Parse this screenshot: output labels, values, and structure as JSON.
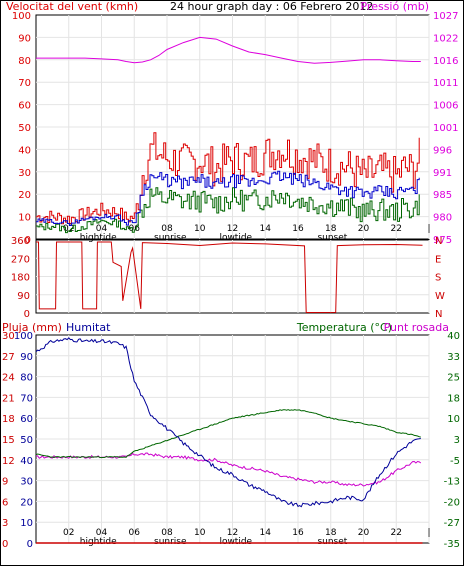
{
  "colors": {
    "wind": "#dd0000",
    "gust": "#dd0000",
    "avg_wind": "#0000cc",
    "wind_dir": "#cc0000",
    "pressure": "#dd00dd",
    "rain": "#cc0000",
    "humidity": "#000099",
    "temperature": "#006600",
    "dewpoint": "#cc00cc",
    "grid": "#e4e4e4",
    "frame": "#000000"
  },
  "chart_data": [
    {
      "type": "line",
      "id": "wind-pressure",
      "title": "24 hour graph day : 06 Febrero 2012",
      "left_label": "Velocitat del vent (kmh)",
      "right_label": "Pressió (mb)",
      "x_ticks": [
        "02",
        "04",
        "06",
        "08",
        "10",
        "12",
        "14",
        "16",
        "18",
        "20",
        "22",
        "|"
      ],
      "x_events": [
        "hightide",
        "sunrise",
        "lowtide",
        "sunset"
      ],
      "left_ticks": [
        0,
        10,
        20,
        30,
        40,
        50,
        60,
        70,
        80,
        90,
        100
      ],
      "right_ticks": [
        975,
        980,
        985,
        991,
        996,
        1001,
        1006,
        1011,
        1016,
        1022,
        1027
      ],
      "ylim_left": [
        0,
        100
      ],
      "ylim_right": [
        975,
        1027
      ],
      "x": [
        0,
        1,
        2,
        3,
        4,
        5,
        5.5,
        6,
        6.5,
        7,
        7.5,
        8,
        9,
        10,
        11,
        12,
        13,
        14,
        15,
        16,
        17,
        18,
        19,
        20,
        21,
        22,
        22.5,
        23,
        23.5
      ],
      "series": [
        {
          "name": "gust",
          "color_key": "wind",
          "values": [
            10,
            10,
            9,
            11,
            13,
            12,
            9,
            10,
            30,
            40,
            38,
            36,
            34,
            35,
            32,
            36,
            34,
            38,
            40,
            37,
            35,
            33,
            32,
            28,
            30,
            28,
            32,
            30,
            38
          ]
        },
        {
          "name": "speed",
          "color_key": "avg_wind",
          "values": [
            8,
            8,
            7,
            9,
            10,
            10,
            7,
            8,
            22,
            28,
            27,
            26,
            25,
            26,
            24,
            26,
            25,
            27,
            28,
            26,
            25,
            23,
            22,
            20,
            21,
            20,
            22,
            21,
            26
          ]
        },
        {
          "name": "min",
          "color_key": "temperature",
          "values": [
            5,
            6,
            4,
            6,
            8,
            7,
            4,
            5,
            14,
            20,
            18,
            18,
            17,
            17,
            16,
            18,
            17,
            18,
            20,
            17,
            16,
            15,
            14,
            12,
            13,
            12,
            14,
            13,
            17
          ]
        },
        {
          "name": "pressure",
          "color_key": "pressure",
          "axis": "right",
          "values": [
            1017,
            1017,
            1017,
            1017,
            1016.8,
            1016.6,
            1016.2,
            1015.9,
            1016.1,
            1016.6,
            1017.6,
            1019,
            1020.6,
            1021.8,
            1021.4,
            1019.8,
            1018.4,
            1017.8,
            1017,
            1016.2,
            1015.8,
            1016,
            1016.3,
            1016.6,
            1016.6,
            1016.4,
            1016.3,
            1016.2,
            1016.2
          ]
        }
      ]
    },
    {
      "type": "line",
      "id": "wind-direction",
      "left_ticks": [
        0,
        90,
        180,
        270,
        360
      ],
      "right_ticks": [
        "N",
        "W",
        "S",
        "E",
        "N"
      ],
      "ylim": [
        0,
        360
      ],
      "x": [
        0,
        0.15,
        0.2,
        1.2,
        1.25,
        2.8,
        2.85,
        3.7,
        3.75,
        4.6,
        4.7,
        5.2,
        5.3,
        5.8,
        5.9,
        6.4,
        6.5,
        8,
        10,
        12,
        14,
        16.4,
        16.5,
        18.3,
        18.4,
        20,
        22,
        23.6
      ],
      "series": [
        {
          "name": "direction",
          "color_key": "wind_dir",
          "values": [
            350,
            350,
            20,
            20,
            350,
            350,
            20,
            20,
            350,
            350,
            250,
            230,
            60,
            300,
            320,
            20,
            345,
            340,
            335,
            345,
            340,
            330,
            5,
            5,
            330,
            335,
            340,
            335
          ]
        }
      ]
    },
    {
      "type": "line",
      "id": "rain-humidity-temp",
      "labels": {
        "rain": "Pluja (mm)",
        "humidity": "Humitat",
        "temperature": "Temperatura (°C)",
        "dewpoint": "Punt rosada"
      },
      "x_ticks": [
        "02",
        "04",
        "06",
        "08",
        "10",
        "12",
        "14",
        "16",
        "18",
        "20",
        "22",
        "|"
      ],
      "x_events": [
        "hightide",
        "sunrise",
        "lowtide",
        "sunset"
      ],
      "rain_ticks": [
        "0",
        "3",
        "6",
        "9",
        "12",
        "15",
        "18",
        "21",
        "24",
        "27",
        "30"
      ],
      "humidity_ticks": [
        0,
        10,
        20,
        30,
        40,
        50,
        60,
        70,
        80,
        90,
        100
      ],
      "temp_ticks": [
        -35,
        -27,
        -20,
        -13,
        -5,
        3,
        10,
        18,
        25,
        33,
        40
      ],
      "ylim_humidity": [
        0,
        100
      ],
      "ylim_temp": [
        -35,
        40
      ],
      "x": [
        0,
        1,
        2,
        3,
        4,
        5,
        5.5,
        6,
        7,
        8,
        9,
        10,
        11,
        12,
        13,
        14,
        15,
        16,
        17,
        18,
        19,
        20,
        21,
        22,
        23,
        23.6
      ],
      "series": [
        {
          "name": "rain",
          "color_key": "rain",
          "values": [
            0,
            0,
            0,
            0,
            0,
            0,
            0,
            0,
            0,
            0,
            0,
            0,
            0,
            0,
            0,
            0,
            0,
            0,
            0,
            0,
            0,
            0,
            0,
            0,
            0,
            0
          ]
        },
        {
          "name": "humidity",
          "color_key": "humidity",
          "values": [
            92,
            97,
            98,
            97,
            97,
            96,
            94,
            78,
            62,
            55,
            48,
            42,
            36,
            33,
            28,
            25,
            20,
            18,
            19,
            20,
            22,
            21,
            33,
            43,
            49,
            50
          ]
        },
        {
          "name": "temperature",
          "color_key": "temperature",
          "values": [
            -3,
            -4,
            -4,
            -4,
            -4,
            -4,
            -4,
            -2,
            0,
            2,
            4,
            6,
            8,
            10,
            11,
            12,
            13,
            13,
            12,
            10,
            9,
            8,
            7,
            5,
            4,
            3
          ]
        },
        {
          "name": "dewpoint",
          "color_key": "dewpoint",
          "values": [
            -4,
            -4,
            -4,
            -4,
            -4,
            -4,
            -4,
            -3,
            -3,
            -4,
            -4,
            -5,
            -5,
            -7,
            -8,
            -9,
            -11,
            -12,
            -13,
            -13,
            -14,
            -14,
            -13,
            -9,
            -6,
            -6
          ]
        }
      ]
    }
  ]
}
